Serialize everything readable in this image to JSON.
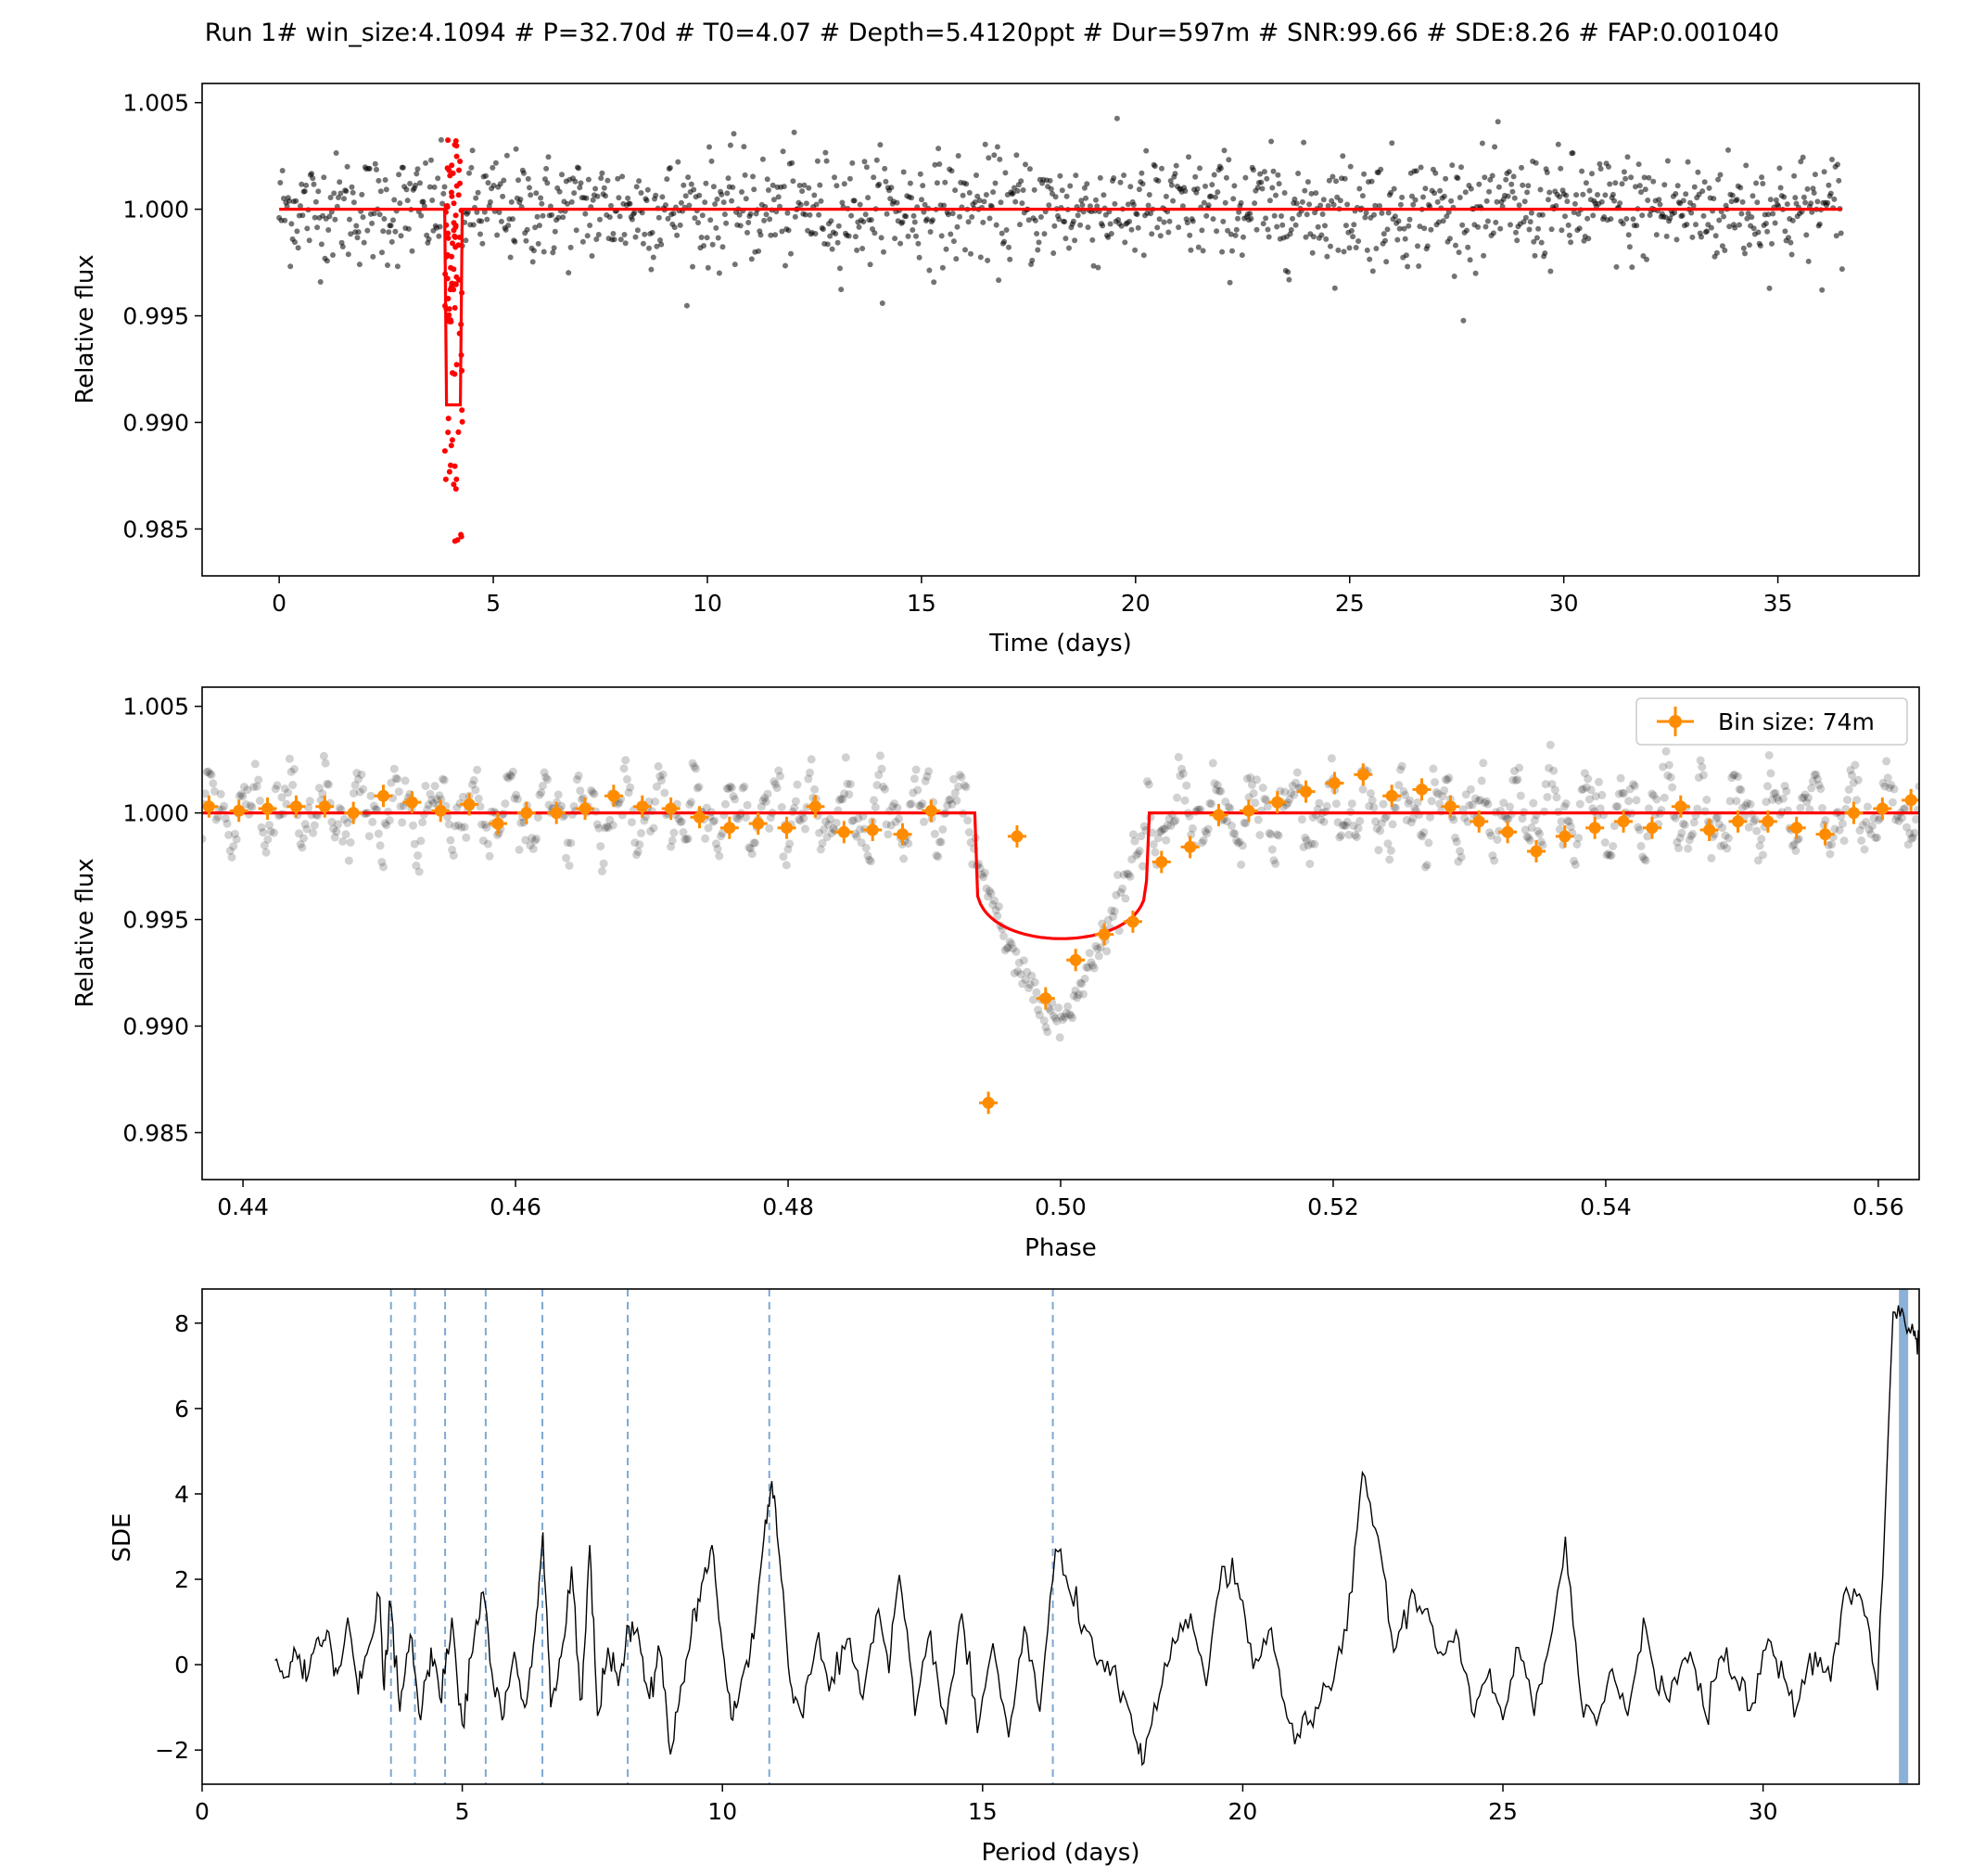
{
  "figure": {
    "title": "Run 1# win_size:4.1094 # P=32.70d # T0=4.07 # Depth=5.4120ppt # Dur=597m # SNR:99.66 # SDE:8.26 # FAP:0.001040"
  },
  "colors": {
    "data_points": "#000000",
    "model": "#ff0000",
    "in_transit": "#ff0000",
    "binned": "#ff8c00",
    "harmonic_lines": "#7fa9d1",
    "period_band": "#7fa9d1",
    "sde_line": "#000000"
  },
  "chart_data": [
    {
      "id": "lightcurve",
      "type": "scatter",
      "xlabel": "Time (days)",
      "ylabel": "Relative flux",
      "xlim": [
        -1.8,
        38.3
      ],
      "ylim": [
        0.9828,
        1.0059
      ],
      "xticks": [
        0,
        5,
        10,
        15,
        20,
        25,
        30,
        35
      ],
      "xtick_labels": [
        "0",
        "5",
        "10",
        "15",
        "20",
        "25",
        "30",
        "35"
      ],
      "yticks": [
        0.985,
        0.99,
        0.995,
        1.0,
        1.005
      ],
      "ytick_labels": [
        "0.985",
        "0.990",
        "0.995",
        "1.000",
        "1.005"
      ],
      "time_range": [
        0.0,
        36.5
      ],
      "flux_scatter_ppt": 1.3,
      "transit": {
        "center": 4.07,
        "duration_days": 0.41,
        "depth": 0.0054,
        "min_flux": 0.9838,
        "max_flux": 1.0033
      },
      "model": {
        "baseline": 1.0,
        "transit_center": 4.07,
        "duration_days": 0.41
      }
    },
    {
      "id": "phase_folded",
      "type": "scatter",
      "xlabel": "Phase",
      "ylabel": "Relative flux",
      "xlim": [
        0.437,
        0.563
      ],
      "ylim": [
        0.9828,
        1.0059
      ],
      "xticks": [
        0.44,
        0.46,
        0.48,
        0.5,
        0.52,
        0.54,
        0.56
      ],
      "xtick_labels": [
        "0.44",
        "0.46",
        "0.48",
        "0.50",
        "0.52",
        "0.54",
        "0.56"
      ],
      "yticks": [
        0.985,
        0.99,
        0.995,
        1.0,
        1.005
      ],
      "ytick_labels": [
        "0.985",
        "0.990",
        "0.995",
        "1.000",
        "1.005"
      ],
      "legend": {
        "position": "top-right",
        "label": "Bin size: 74m"
      },
      "model": {
        "baseline": 1.0,
        "ingress": 0.4938,
        "egress": 0.5063,
        "ingress_level": 0.9968,
        "depth_min": 0.9941
      },
      "binned": {
        "phase": [
          0.4375,
          0.4397,
          0.4418,
          0.4439,
          0.446,
          0.4481,
          0.4503,
          0.4524,
          0.4545,
          0.4566,
          0.4587,
          0.4608,
          0.463,
          0.4651,
          0.4672,
          0.4693,
          0.4714,
          0.4735,
          0.4757,
          0.4778,
          0.4799,
          0.482,
          0.4841,
          0.4862,
          0.4884,
          0.4905,
          0.4947,
          0.4968,
          0.4989,
          0.5011,
          0.5032,
          0.5053,
          0.5074,
          0.5095,
          0.5116,
          0.5138,
          0.5159,
          0.518,
          0.5201,
          0.5222,
          0.5243,
          0.5265,
          0.5286,
          0.5307,
          0.5328,
          0.5349,
          0.537,
          0.5392,
          0.5413,
          0.5434,
          0.5455,
          0.5476,
          0.5497,
          0.5519,
          0.554,
          0.5561,
          0.5582,
          0.5603,
          0.5624
        ],
        "flux": [
          1.0003,
          1.0001,
          1.0002,
          1.0003,
          1.0003,
          1.0,
          1.0008,
          1.0005,
          1.0001,
          1.0004,
          0.9995,
          1.0,
          1.0,
          1.0002,
          1.0008,
          1.0003,
          1.0002,
          0.9998,
          0.9993,
          0.9995,
          0.9993,
          1.0003,
          0.9991,
          0.9992,
          0.999,
          1.0001,
          0.9864,
          0.9989,
          0.9913,
          0.9931,
          0.9943,
          0.9949,
          0.9977,
          0.9984,
          0.9999,
          1.0001,
          1.0005,
          1.001,
          1.0014,
          1.0018,
          1.0008,
          1.0011,
          1.0003,
          0.9996,
          0.9991,
          0.9982,
          0.9989,
          0.9993,
          0.9996,
          0.9993,
          1.0003,
          0.9992,
          0.9996,
          0.9996,
          0.9993,
          0.999,
          1.0,
          1.0002,
          1.0006
        ]
      }
    },
    {
      "id": "sde_periodogram",
      "type": "line",
      "xlabel": "Period (days)",
      "ylabel": "SDE",
      "xlim": [
        0,
        33.0
      ],
      "ylim": [
        -2.8,
        8.8
      ],
      "xticks": [
        0,
        5,
        10,
        15,
        20,
        25,
        30
      ],
      "xtick_labels": [
        "0",
        "5",
        "10",
        "15",
        "20",
        "25",
        "30"
      ],
      "yticks": [
        -2,
        0,
        2,
        4,
        6,
        8
      ],
      "ytick_labels": [
        "−2",
        "0",
        "2",
        "4",
        "6",
        "8"
      ],
      "best_period": 32.7,
      "harmonics": [
        3.63,
        4.09,
        4.67,
        5.45,
        6.54,
        8.18,
        10.9,
        16.35
      ],
      "curve": {
        "period": [
          1.4,
          1.6,
          1.8,
          2.0,
          2.2,
          2.4,
          2.6,
          2.8,
          3.0,
          3.2,
          3.4,
          3.5,
          3.6,
          3.8,
          4.0,
          4.2,
          4.4,
          4.6,
          4.8,
          5.0,
          5.2,
          5.4,
          5.6,
          5.8,
          6.0,
          6.2,
          6.4,
          6.55,
          6.7,
          6.9,
          7.1,
          7.3,
          7.45,
          7.6,
          7.8,
          8.0,
          8.2,
          8.4,
          8.6,
          8.8,
          9.0,
          9.2,
          9.4,
          9.6,
          9.8,
          10.0,
          10.2,
          10.4,
          10.6,
          10.8,
          10.95,
          11.1,
          11.3,
          11.5,
          11.8,
          12.1,
          12.4,
          12.7,
          13.0,
          13.2,
          13.4,
          13.7,
          14.0,
          14.3,
          14.6,
          14.9,
          15.2,
          15.5,
          15.8,
          16.1,
          16.4,
          16.7,
          17.0,
          17.3,
          17.6,
          17.9,
          18.1,
          18.4,
          18.7,
          19.0,
          19.3,
          19.6,
          19.9,
          20.2,
          20.5,
          20.8,
          21.1,
          21.4,
          21.7,
          22.0,
          22.3,
          22.6,
          22.9,
          23.2,
          23.5,
          23.8,
          24.1,
          24.4,
          24.7,
          25.0,
          25.3,
          25.6,
          25.9,
          26.2,
          26.5,
          26.8,
          27.1,
          27.4,
          27.7,
          28.0,
          28.3,
          28.6,
          28.9,
          29.2,
          29.5,
          29.8,
          30.1,
          30.4,
          30.7,
          31.0,
          31.3,
          31.6,
          31.9,
          32.2,
          32.5,
          32.7,
          32.9,
          33.0
        ],
        "sde": [
          0.1,
          -0.3,
          0.3,
          -0.4,
          0.6,
          0.8,
          -0.2,
          1.1,
          -0.7,
          0.4,
          1.6,
          -0.6,
          1.5,
          -1.1,
          0.7,
          -1.3,
          0.4,
          -0.9,
          1.1,
          -1.4,
          0.3,
          1.7,
          -0.5,
          -1.2,
          0.3,
          -1.0,
          0.8,
          3.1,
          -1.0,
          0.2,
          2.3,
          -0.8,
          2.8,
          -1.2,
          0.4,
          -0.5,
          0.9,
          0.6,
          -0.8,
          0.3,
          -2.1,
          -0.5,
          0.7,
          1.9,
          2.8,
          0.4,
          -1.3,
          -0.2,
          0.6,
          3.0,
          4.3,
          2.5,
          -0.4,
          -1.1,
          0.5,
          -0.3,
          0.6,
          -0.8,
          1.3,
          -0.2,
          2.1,
          -1.2,
          0.8,
          -1.4,
          1.2,
          -1.6,
          0.5,
          -1.7,
          0.9,
          -1.1,
          2.7,
          1.6,
          0.8,
          0.1,
          -0.5,
          -1.6,
          -2.3,
          -0.7,
          0.5,
          1.2,
          -0.5,
          2.3,
          1.9,
          -0.1,
          0.8,
          -0.9,
          -1.7,
          -1.0,
          -0.6,
          0.8,
          4.5,
          3.0,
          0.3,
          1.5,
          1.3,
          0.3,
          0.8,
          -1.1,
          -0.3,
          -1.3,
          0.4,
          -1.2,
          0.5,
          3.0,
          -0.8,
          -1.4,
          -0.1,
          -1.2,
          1.1,
          -0.7,
          -0.3,
          0.3,
          -1.2,
          0.2,
          -0.4,
          -0.9,
          0.6,
          -0.3,
          -0.8,
          0.3,
          -0.4,
          1.8,
          1.5,
          -0.6,
          8.26,
          8.2,
          7.7,
          7.7
        ]
      }
    }
  ]
}
